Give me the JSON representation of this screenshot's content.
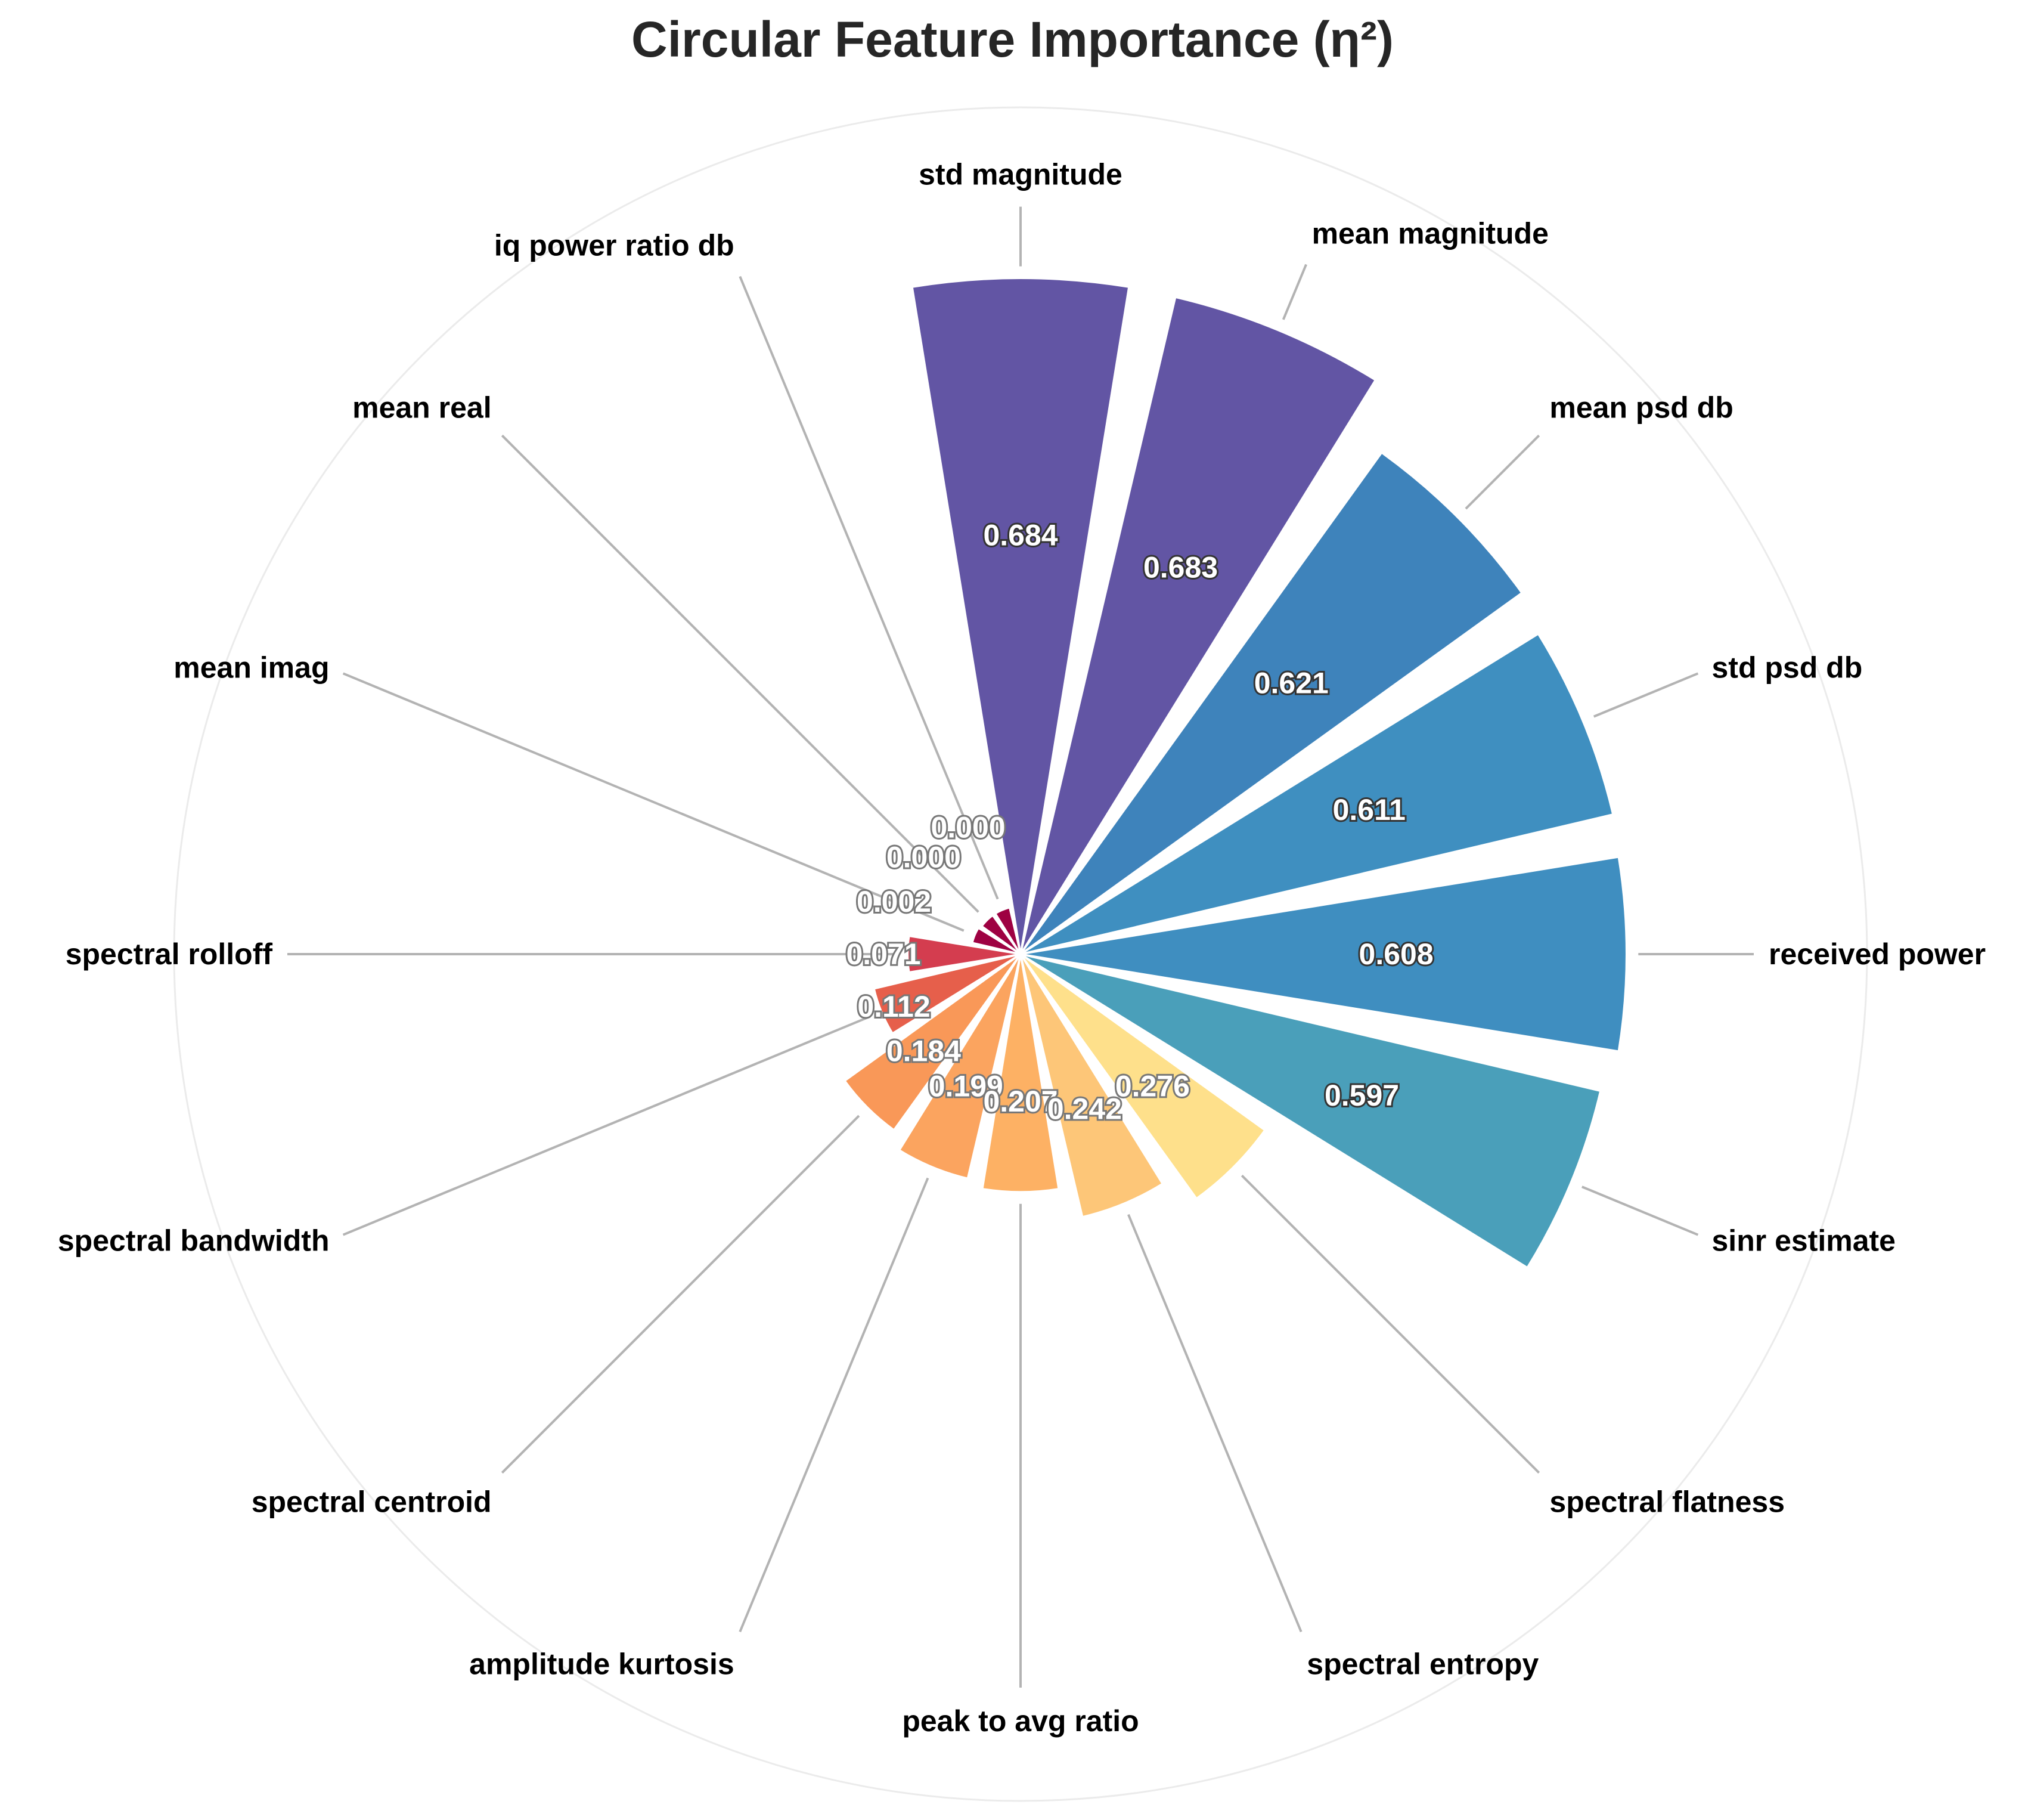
{
  "chart_data": {
    "type": "bar",
    "subtype": "polar",
    "title": "Circular Feature Importance (η²)",
    "categories": [
      "received power",
      "std psd db",
      "mean psd db",
      "mean magnitude",
      "std magnitude",
      "iq power ratio db",
      "mean real",
      "mean imag",
      "spectral rolloff",
      "spectral bandwidth",
      "spectral centroid",
      "amplitude kurtosis",
      "peak to avg ratio",
      "spectral entropy",
      "spectral flatness",
      "sinr estimate"
    ],
    "values": [
      0.608,
      0.611,
      0.621,
      0.683,
      0.684,
      0.0,
      0.0,
      0.002,
      0.071,
      0.112,
      0.184,
      0.199,
      0.207,
      0.242,
      0.276,
      0.597
    ],
    "value_labels": [
      "0.608",
      "0.611",
      "0.621",
      "0.683",
      "0.684",
      "0.000",
      "0.000",
      "0.002",
      "0.071",
      "0.112",
      "0.184",
      "0.199",
      "0.207",
      "0.242",
      "0.276",
      "0.597"
    ],
    "colors": [
      "#3f8ec0",
      "#3f8fc0",
      "#3e83bb",
      "#6255a4",
      "#6255a4",
      "#9e0142",
      "#9e0142",
      "#9e0142",
      "#d43d4f",
      "#e65f4b",
      "#f99858",
      "#fba45f",
      "#fdb164",
      "#fdc678",
      "#fee08b",
      "#4a9fba"
    ],
    "grid": true,
    "ylim": [
      0,
      1
    ]
  }
}
